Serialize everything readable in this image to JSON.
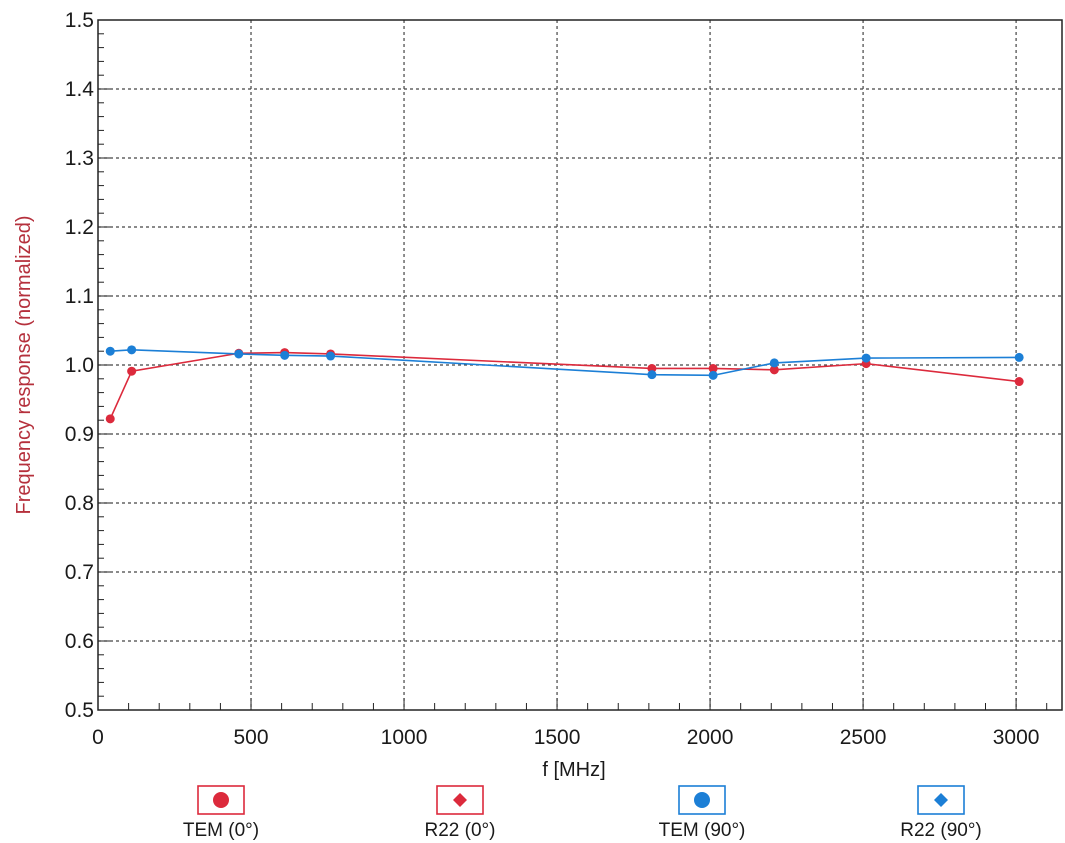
{
  "chart_data": {
    "type": "line",
    "xlabel": "f [MHz]",
    "ylabel": "Frequency response (normalized)",
    "xlim": [
      0,
      3150
    ],
    "ylim": [
      0.5,
      1.5
    ],
    "xticks": [
      0,
      500,
      1000,
      1500,
      2000,
      2500,
      3000
    ],
    "yticks": [
      0.5,
      0.6,
      0.7,
      0.8,
      0.9,
      1.0,
      1.1,
      1.2,
      1.3,
      1.4,
      1.5
    ],
    "ytick_labels": [
      "0.5",
      "0.6",
      "0.7",
      "0.8",
      "0.9",
      "1.0",
      "1.1",
      "1.2",
      "1.3",
      "1.4",
      "1.5"
    ],
    "grid": true,
    "legend_position": "bottom",
    "series": [
      {
        "name": "TEM (0°)",
        "color": "#dc2a3c",
        "marker": "circle",
        "points": [
          [
            40,
            0.922
          ],
          [
            110,
            0.991
          ],
          [
            460,
            1.017
          ],
          [
            610,
            1.018
          ],
          [
            760,
            1.016
          ],
          [
            1810,
            0.995
          ],
          [
            2010,
            0.995
          ],
          [
            2210,
            0.993
          ],
          [
            2510,
            1.002
          ],
          [
            3010,
            0.976
          ]
        ]
      },
      {
        "name": "R22 (0°)",
        "color": "#dc2a3c",
        "marker": "diamond",
        "points": []
      },
      {
        "name": "TEM (90°)",
        "color": "#1c7fd6",
        "marker": "circle",
        "points": [
          [
            40,
            1.02
          ],
          [
            110,
            1.022
          ],
          [
            460,
            1.016
          ],
          [
            610,
            1.014
          ],
          [
            760,
            1.013
          ],
          [
            1810,
            0.986
          ],
          [
            2010,
            0.985
          ],
          [
            2210,
            1.003
          ],
          [
            2510,
            1.01
          ],
          [
            3010,
            1.011
          ]
        ]
      },
      {
        "name": "R22 (90°)",
        "color": "#1c7fd6",
        "marker": "diamond",
        "points": []
      }
    ]
  }
}
